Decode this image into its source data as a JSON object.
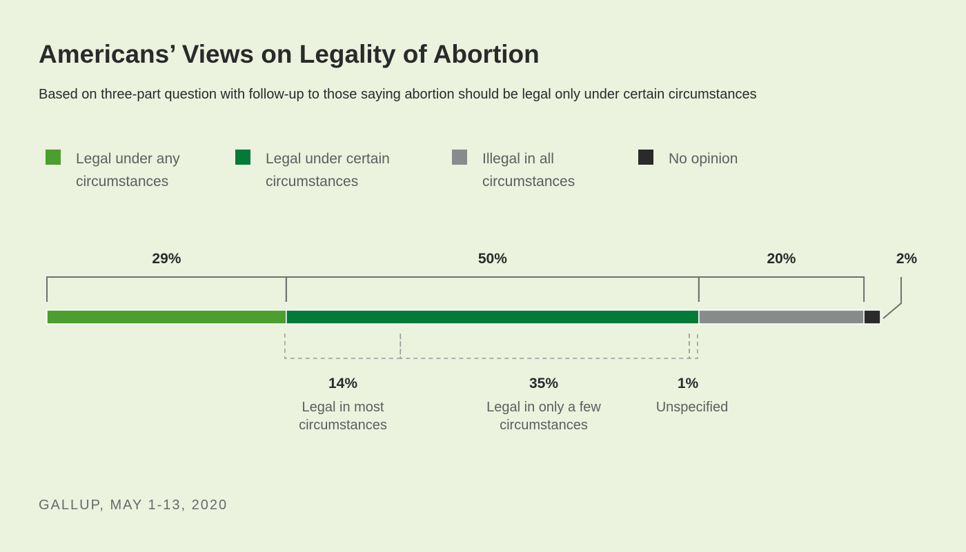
{
  "title": "Americans’ Views on Legality of Abortion",
  "subtitle": "Based on three-part question with follow-up to those saying abortion should be legal only under certain circumstances",
  "source": "GALLUP, MAY 1-13, 2020",
  "chart_data": {
    "type": "bar",
    "orientation": "horizontal-stacked",
    "series": [
      {
        "name": "Legal under any circumstances",
        "value": 29,
        "label": "29%",
        "color": "#4c9e2f"
      },
      {
        "name": "Legal under certain circumstances",
        "value": 50,
        "label": "50%",
        "color": "#047a38"
      },
      {
        "name": "Illegal in all circumstances",
        "value": 20,
        "label": "20%",
        "color": "#898b8b"
      },
      {
        "name": "No opinion",
        "value": 2,
        "label": "2%",
        "color": "#2a2a2a"
      }
    ],
    "breakdown_of": "Legal under certain circumstances",
    "breakdown": [
      {
        "name": "Legal in most circumstances",
        "lines": [
          "Legal in most",
          "circumstances"
        ],
        "value": 14,
        "label": "14%"
      },
      {
        "name": "Legal in only a few circumstances",
        "lines": [
          "Legal in only a few",
          "circumstances"
        ],
        "value": 35,
        "label": "35%"
      },
      {
        "name": "Unspecified",
        "lines": [
          "Unspecified"
        ],
        "value": 1,
        "label": "1%"
      }
    ],
    "legend": [
      {
        "lines": [
          "Legal under any",
          "circumstances"
        ],
        "color": "#4c9e2f"
      },
      {
        "lines": [
          "Legal under certain",
          "circumstances"
        ],
        "color": "#047a38"
      },
      {
        "lines": [
          "Illegal in all",
          "circumstances"
        ],
        "color": "#898b8b"
      },
      {
        "lines": [
          "No opinion"
        ],
        "color": "#2a2a2a"
      }
    ],
    "legend_position": "top"
  }
}
